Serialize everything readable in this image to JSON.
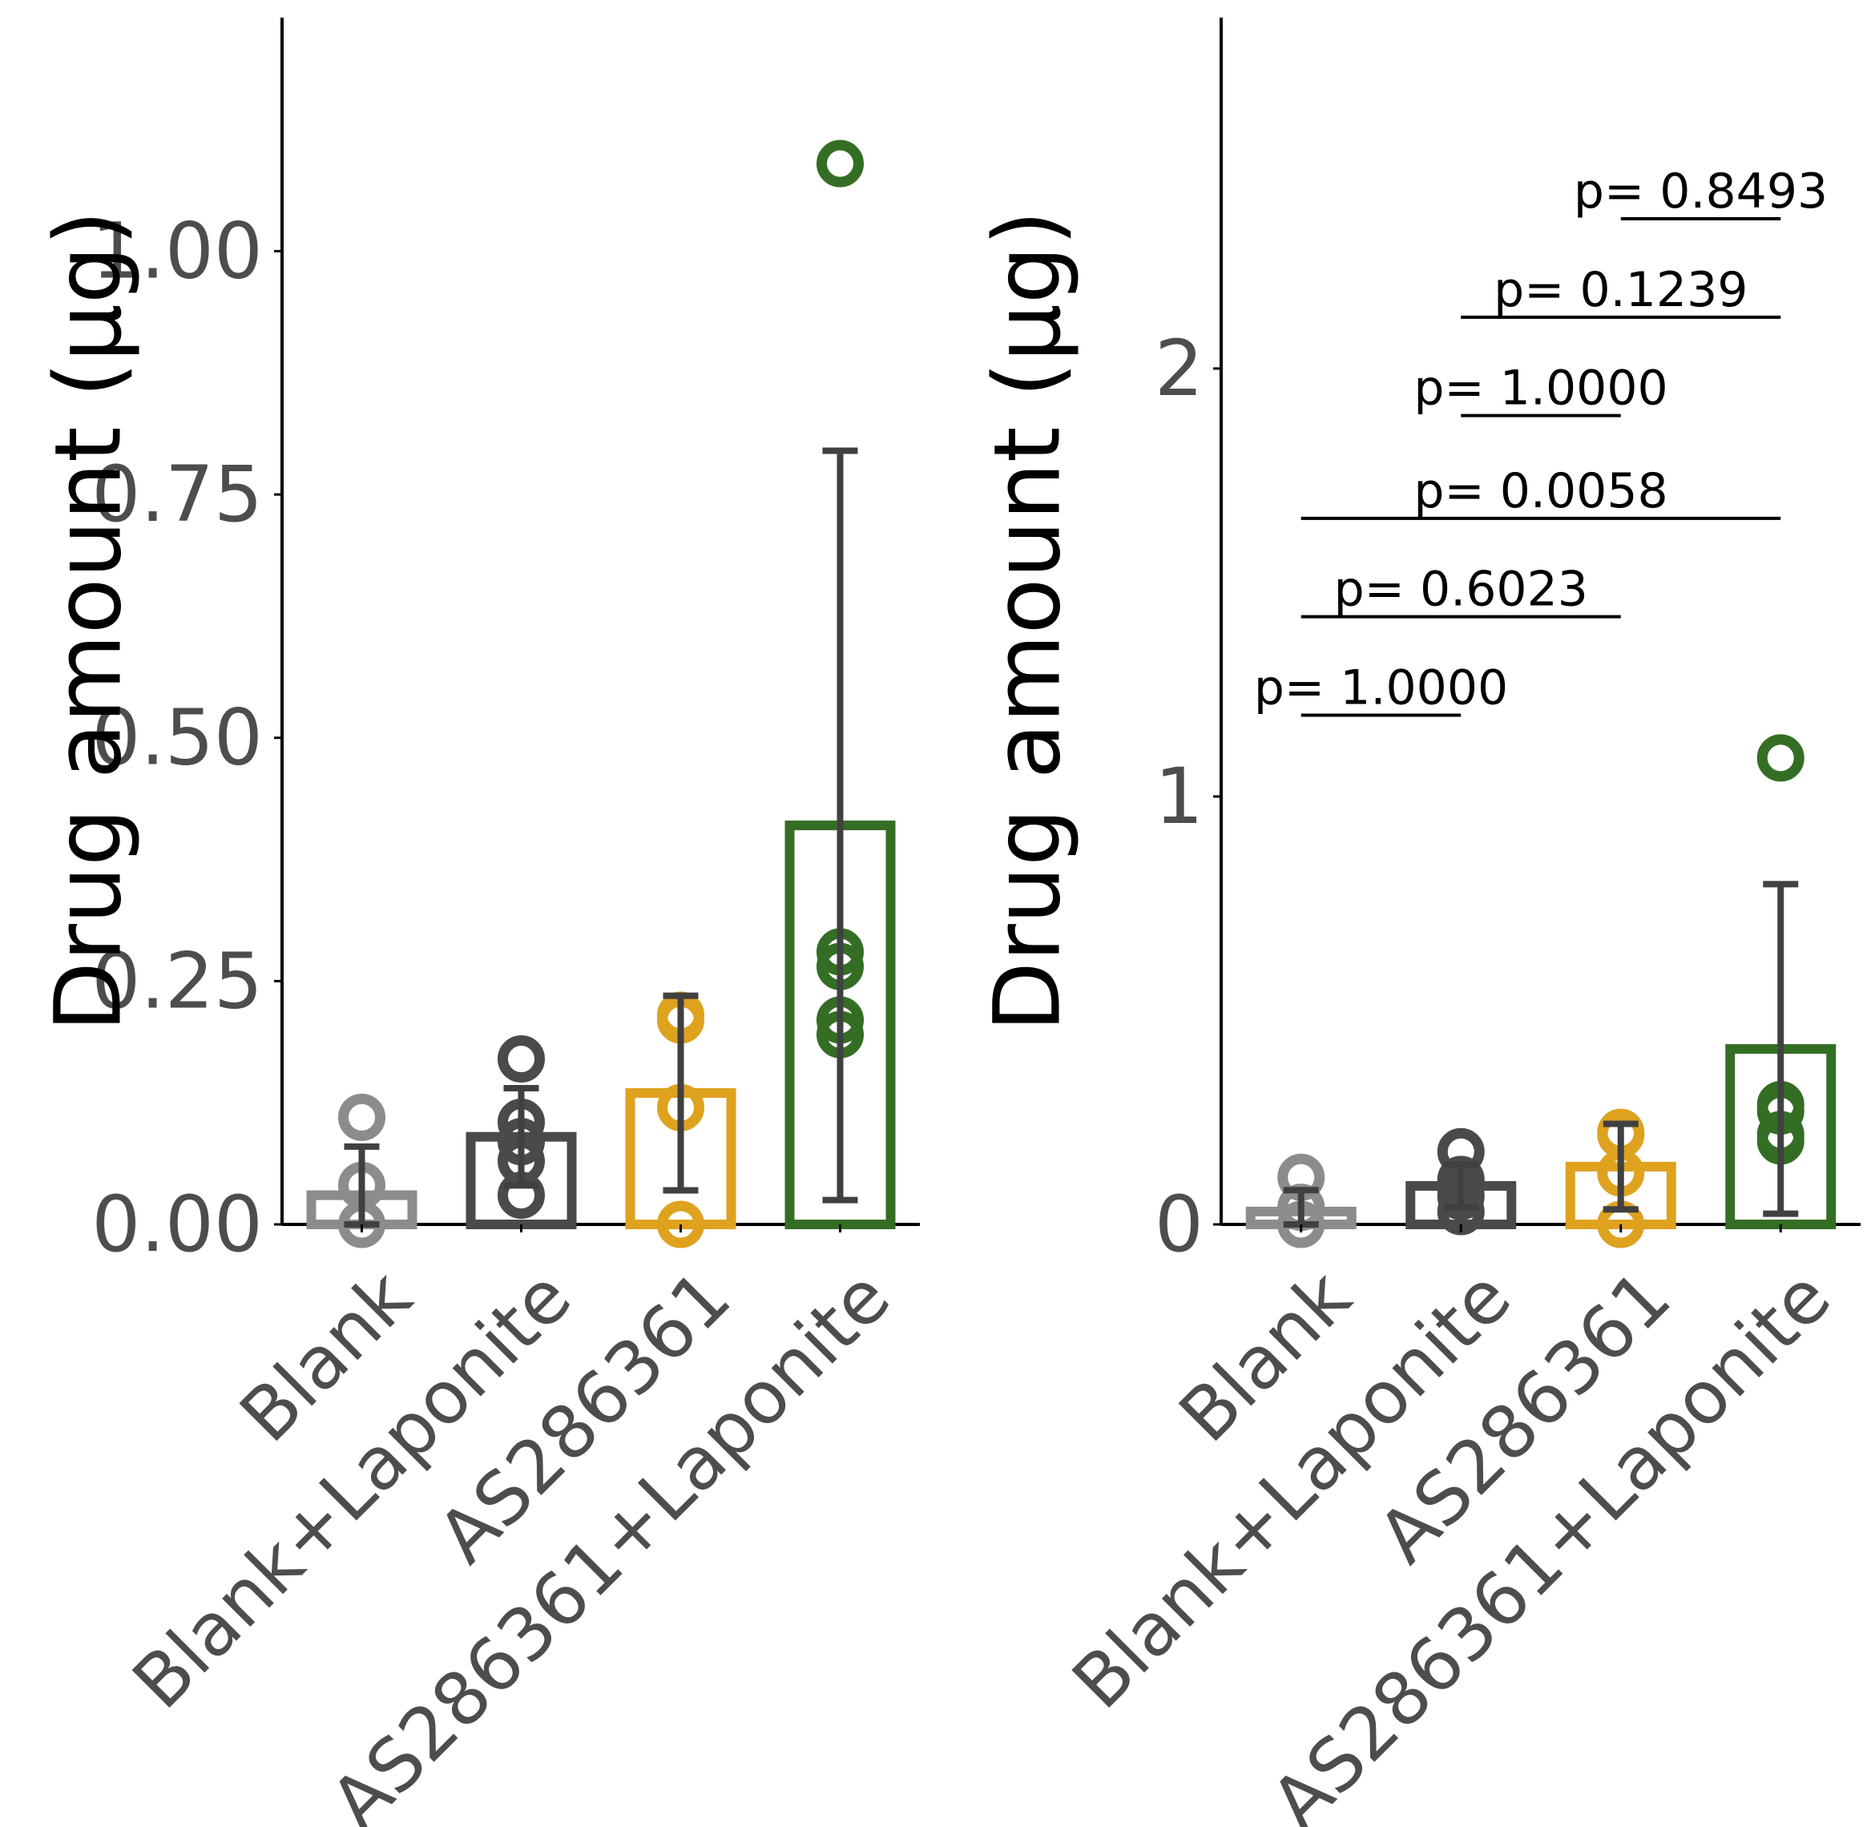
{
  "colors": {
    "Blank": "#8c8c8c",
    "Blank+Laponite": "#4a4a4a",
    "AS286361": "#dea21f",
    "AS286361+Laponite": "#346e24",
    "errorbar": "#404040",
    "axis": "#000000"
  },
  "chart_data": [
    {
      "type": "bar",
      "ylabel": "Drug amount (µg)",
      "categories": [
        "Blank",
        "Blank+Laponite",
        "AS286361",
        "AS286361+Laponite"
      ],
      "yticks": [
        0,
        0.25,
        0.5,
        0.75,
        1.0
      ],
      "ytick_labels": [
        "0.00",
        "0.25",
        "0.50",
        "0.75",
        "1.00"
      ],
      "ylim": [
        0,
        1.24
      ],
      "grid": false,
      "values": [
        0.03,
        0.09,
        0.135,
        0.41
      ],
      "error_low": [
        0.0,
        0.04,
        0.035,
        0.025
      ],
      "error_high": [
        0.08,
        0.14,
        0.235,
        0.795
      ],
      "points": [
        [
          0.11,
          0.04,
          0.0
        ],
        [
          0.17,
          0.105,
          0.085,
          0.065,
          0.03
        ],
        [
          0.215,
          0.21,
          0.12,
          0.0
        ],
        [
          1.09,
          0.28,
          0.265,
          0.21,
          0.195
        ]
      ],
      "significance": []
    },
    {
      "type": "bar",
      "ylabel": "Drug amount (µg)",
      "categories": [
        "Blank",
        "Blank+Laponite",
        "AS286361",
        "AS286361+Laponite"
      ],
      "yticks": [
        0,
        1,
        2
      ],
      "ytick_labels": [
        "0",
        "1",
        "2"
      ],
      "ylim": [
        0,
        2.82
      ],
      "grid": false,
      "values": [
        0.03,
        0.09,
        0.135,
        0.41
      ],
      "error_low": [
        0.0,
        0.04,
        0.035,
        0.025
      ],
      "error_high": [
        0.08,
        0.14,
        0.235,
        0.795
      ],
      "points": [
        [
          0.11,
          0.04,
          0.0
        ],
        [
          0.17,
          0.105,
          0.085,
          0.065,
          0.03
        ],
        [
          0.215,
          0.21,
          0.12,
          0.0
        ],
        [
          1.09,
          0.28,
          0.265,
          0.21,
          0.195
        ]
      ],
      "significance": [
        {
          "from": 0,
          "to": 1,
          "y": 1.19,
          "label": "p= 1.0000"
        },
        {
          "from": 0,
          "to": 2,
          "y": 1.42,
          "label": "p= 0.6023"
        },
        {
          "from": 0,
          "to": 3,
          "y": 1.65,
          "label": "p= 0.0058"
        },
        {
          "from": 1,
          "to": 2,
          "y": 1.89,
          "label": "p= 1.0000"
        },
        {
          "from": 1,
          "to": 3,
          "y": 2.12,
          "label": "p= 0.1239"
        },
        {
          "from": 2,
          "to": 3,
          "y": 2.35,
          "label": "p= 0.8493"
        }
      ]
    }
  ]
}
